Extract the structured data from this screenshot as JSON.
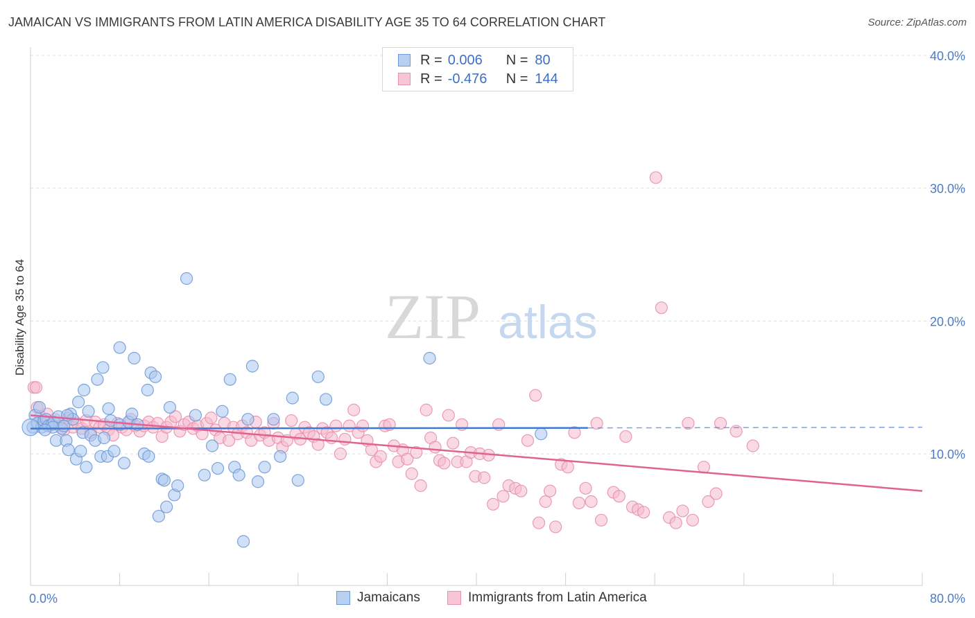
{
  "title": "JAMAICAN VS IMMIGRANTS FROM LATIN AMERICA DISABILITY AGE 35 TO 64 CORRELATION CHART",
  "source": "Source: ZipAtlas.com",
  "watermark": {
    "zip": "ZIP",
    "atlas": "atlas"
  },
  "colors": {
    "blue_fill": "#a9c6ee",
    "blue_stroke": "#6f9ad8",
    "blue_line": "#3f7ad4",
    "pink_fill": "#f4b9cd",
    "pink_stroke": "#e890ae",
    "pink_line": "#e06292",
    "tick_text": "#4a7cc7",
    "grid": "#dcdcdc"
  },
  "legend": {
    "rows": [
      {
        "r_label": "R =",
        "r_value": "0.006",
        "n_label": "N =",
        "n_value": "80"
      },
      {
        "r_label": "R =",
        "r_value": "-0.476",
        "n_label": "N =",
        "n_value": "144"
      }
    ]
  },
  "bottom_legend": [
    "Jamaicans",
    "Immigrants from Latin America"
  ],
  "chart_data": {
    "type": "scatter",
    "title": "JAMAICAN VS IMMIGRANTS FROM LATIN AMERICA DISABILITY AGE 35 TO 64 CORRELATION CHART",
    "xlabel": "",
    "ylabel": "Disability Age 35 to 64",
    "xlim": [
      0,
      80
    ],
    "ylim": [
      0,
      42
    ],
    "x_tick_labels": [
      "0.0%",
      "80.0%"
    ],
    "y_ticks": [
      10,
      20,
      30,
      40
    ],
    "y_tick_labels": [
      "10.0%",
      "20.0%",
      "30.0%",
      "40.0%"
    ],
    "grid": true,
    "series": [
      {
        "name": "Jamaicans",
        "R": 0.006,
        "N": 80,
        "trend": {
          "x0": 0,
          "y0": 11.9,
          "x1": 50,
          "y1": 11.95,
          "dash_to": 80
        },
        "points": [
          [
            0.2,
            12.0
          ],
          [
            0.4,
            12.9
          ],
          [
            0.6,
            12.3
          ],
          [
            0.8,
            13.5
          ],
          [
            1.0,
            12.0
          ],
          [
            1.2,
            12.5
          ],
          [
            1.4,
            12.6
          ],
          [
            1.6,
            12.1
          ],
          [
            1.9,
            12.2
          ],
          [
            2.1,
            12.4
          ],
          [
            2.3,
            11.0
          ],
          [
            2.5,
            12.8
          ],
          [
            2.8,
            11.9
          ],
          [
            3.0,
            12.1
          ],
          [
            3.2,
            11.0
          ],
          [
            3.4,
            10.3
          ],
          [
            3.6,
            13.0
          ],
          [
            3.8,
            12.6
          ],
          [
            4.1,
            9.6
          ],
          [
            4.3,
            13.9
          ],
          [
            4.5,
            10.2
          ],
          [
            4.7,
            11.6
          ],
          [
            5.0,
            9.0
          ],
          [
            5.2,
            13.2
          ],
          [
            5.4,
            11.4
          ],
          [
            5.8,
            11.0
          ],
          [
            6.0,
            15.6
          ],
          [
            6.3,
            9.8
          ],
          [
            6.6,
            11.2
          ],
          [
            6.9,
            9.8
          ],
          [
            7.2,
            12.5
          ],
          [
            7.5,
            10.2
          ],
          [
            8.0,
            12.2
          ],
          [
            8.4,
            9.3
          ],
          [
            8.8,
            12.4
          ],
          [
            9.1,
            13.0
          ],
          [
            9.6,
            12.2
          ],
          [
            10.2,
            10.0
          ],
          [
            10.6,
            9.8
          ],
          [
            10.8,
            16.1
          ],
          [
            11.2,
            15.8
          ],
          [
            11.5,
            5.3
          ],
          [
            11.8,
            8.1
          ],
          [
            12.2,
            6.0
          ],
          [
            12.5,
            13.5
          ],
          [
            12.9,
            6.9
          ],
          [
            13.2,
            7.6
          ],
          [
            14.0,
            23.2
          ],
          [
            14.8,
            12.9
          ],
          [
            15.6,
            8.4
          ],
          [
            16.3,
            10.6
          ],
          [
            16.8,
            8.9
          ],
          [
            17.2,
            13.2
          ],
          [
            17.9,
            15.6
          ],
          [
            18.3,
            9.0
          ],
          [
            18.7,
            8.4
          ],
          [
            19.1,
            3.4
          ],
          [
            19.5,
            12.6
          ],
          [
            19.9,
            16.6
          ],
          [
            20.4,
            7.9
          ],
          [
            21.0,
            9.0
          ],
          [
            21.8,
            12.6
          ],
          [
            22.4,
            9.8
          ],
          [
            23.5,
            14.2
          ],
          [
            24.0,
            8.0
          ],
          [
            25.8,
            15.8
          ],
          [
            26.5,
            14.1
          ],
          [
            35.8,
            17.2
          ],
          [
            45.8,
            11.5
          ],
          [
            7.0,
            13.4
          ],
          [
            8.0,
            18.0
          ],
          [
            9.3,
            17.2
          ],
          [
            10.5,
            14.8
          ],
          [
            4.8,
            14.8
          ],
          [
            6.5,
            16.5
          ],
          [
            3.3,
            12.9
          ],
          [
            2.0,
            12.0
          ],
          [
            1.3,
            11.8
          ],
          [
            12.0,
            8.0
          ],
          [
            0.0,
            12.0
          ]
        ]
      },
      {
        "name": "Immigrants from Latin America",
        "R": -0.476,
        "N": 144,
        "trend": {
          "x0": 0,
          "y0": 12.9,
          "x1": 80,
          "y1": 7.2
        },
        "points": [
          [
            0.3,
            15.0
          ],
          [
            0.6,
            13.5
          ],
          [
            0.9,
            12.8
          ],
          [
            1.2,
            12.4
          ],
          [
            1.5,
            13.0
          ],
          [
            1.9,
            12.2
          ],
          [
            2.2,
            12.6
          ],
          [
            2.6,
            12.1
          ],
          [
            3.0,
            11.8
          ],
          [
            3.4,
            12.7
          ],
          [
            3.8,
            12.0
          ],
          [
            4.2,
            12.3
          ],
          [
            4.6,
            11.9
          ],
          [
            5.0,
            12.5
          ],
          [
            5.4,
            11.6
          ],
          [
            5.8,
            12.4
          ],
          [
            6.2,
            12.0
          ],
          [
            6.6,
            12.2
          ],
          [
            7.0,
            11.8
          ],
          [
            7.4,
            11.4
          ],
          [
            7.8,
            12.3
          ],
          [
            8.2,
            12.0
          ],
          [
            8.6,
            11.8
          ],
          [
            9.0,
            12.6
          ],
          [
            9.4,
            12.1
          ],
          [
            9.8,
            11.7
          ],
          [
            10.2,
            12.1
          ],
          [
            10.6,
            12.4
          ],
          [
            11.0,
            12.0
          ],
          [
            11.4,
            12.3
          ],
          [
            11.8,
            11.3
          ],
          [
            12.2,
            12.0
          ],
          [
            12.6,
            12.4
          ],
          [
            13.0,
            12.8
          ],
          [
            13.4,
            11.7
          ],
          [
            13.8,
            12.2
          ],
          [
            14.2,
            12.4
          ],
          [
            14.6,
            11.9
          ],
          [
            15.0,
            12.1
          ],
          [
            15.4,
            11.5
          ],
          [
            15.8,
            12.3
          ],
          [
            16.2,
            12.7
          ],
          [
            16.6,
            11.8
          ],
          [
            17.0,
            11.2
          ],
          [
            17.4,
            12.3
          ],
          [
            17.8,
            11.0
          ],
          [
            18.2,
            12.0
          ],
          [
            18.6,
            11.5
          ],
          [
            19.0,
            12.1
          ],
          [
            19.4,
            11.6
          ],
          [
            19.8,
            11.0
          ],
          [
            20.2,
            12.4
          ],
          [
            20.6,
            11.4
          ],
          [
            21.0,
            11.6
          ],
          [
            21.4,
            11.0
          ],
          [
            21.8,
            12.3
          ],
          [
            22.2,
            11.2
          ],
          [
            22.6,
            10.5
          ],
          [
            23.0,
            11.0
          ],
          [
            23.4,
            12.5
          ],
          [
            23.8,
            11.5
          ],
          [
            24.2,
            11.1
          ],
          [
            24.6,
            12.0
          ],
          [
            25.0,
            11.6
          ],
          [
            25.4,
            11.3
          ],
          [
            25.8,
            10.7
          ],
          [
            26.2,
            11.9
          ],
          [
            26.6,
            11.6
          ],
          [
            27.0,
            11.2
          ],
          [
            27.4,
            12.1
          ],
          [
            27.8,
            10.0
          ],
          [
            28.2,
            11.1
          ],
          [
            28.6,
            12.1
          ],
          [
            29.0,
            13.3
          ],
          [
            29.4,
            11.6
          ],
          [
            29.8,
            12.1
          ],
          [
            30.2,
            11.0
          ],
          [
            30.6,
            10.3
          ],
          [
            31.0,
            9.4
          ],
          [
            31.4,
            9.8
          ],
          [
            31.8,
            12.1
          ],
          [
            32.2,
            12.2
          ],
          [
            32.6,
            10.6
          ],
          [
            33.0,
            9.4
          ],
          [
            33.4,
            10.3
          ],
          [
            33.8,
            9.6
          ],
          [
            34.2,
            8.5
          ],
          [
            34.6,
            10.1
          ],
          [
            35.0,
            7.6
          ],
          [
            35.5,
            13.3
          ],
          [
            35.9,
            11.2
          ],
          [
            36.3,
            10.5
          ],
          [
            36.7,
            9.5
          ],
          [
            37.1,
            9.3
          ],
          [
            37.5,
            12.9
          ],
          [
            37.9,
            10.8
          ],
          [
            38.3,
            9.4
          ],
          [
            38.7,
            12.2
          ],
          [
            39.1,
            9.4
          ],
          [
            39.5,
            10.1
          ],
          [
            39.9,
            8.3
          ],
          [
            40.3,
            10.0
          ],
          [
            40.7,
            8.2
          ],
          [
            41.1,
            9.9
          ],
          [
            41.5,
            6.2
          ],
          [
            42.0,
            12.2
          ],
          [
            42.4,
            6.8
          ],
          [
            42.9,
            7.6
          ],
          [
            43.5,
            7.4
          ],
          [
            44.0,
            7.2
          ],
          [
            44.6,
            11.0
          ],
          [
            45.3,
            14.4
          ],
          [
            45.6,
            4.8
          ],
          [
            46.2,
            6.4
          ],
          [
            46.6,
            7.2
          ],
          [
            47.1,
            4.5
          ],
          [
            47.6,
            9.2
          ],
          [
            48.2,
            9.0
          ],
          [
            48.8,
            11.6
          ],
          [
            49.2,
            6.3
          ],
          [
            49.8,
            7.4
          ],
          [
            50.3,
            6.4
          ],
          [
            50.8,
            12.3
          ],
          [
            51.2,
            5.0
          ],
          [
            52.3,
            7.1
          ],
          [
            52.8,
            6.8
          ],
          [
            53.4,
            11.3
          ],
          [
            54.0,
            6.0
          ],
          [
            54.5,
            5.8
          ],
          [
            55.0,
            5.6
          ],
          [
            56.1,
            30.8
          ],
          [
            56.6,
            21.0
          ],
          [
            57.3,
            5.2
          ],
          [
            57.9,
            4.8
          ],
          [
            58.5,
            5.7
          ],
          [
            59.0,
            12.3
          ],
          [
            59.4,
            5.0
          ],
          [
            60.4,
            9.0
          ],
          [
            60.8,
            6.4
          ],
          [
            61.5,
            7.0
          ],
          [
            61.9,
            12.3
          ],
          [
            63.3,
            11.7
          ],
          [
            64.8,
            10.6
          ],
          [
            0.5,
            15.0
          ]
        ]
      }
    ]
  }
}
